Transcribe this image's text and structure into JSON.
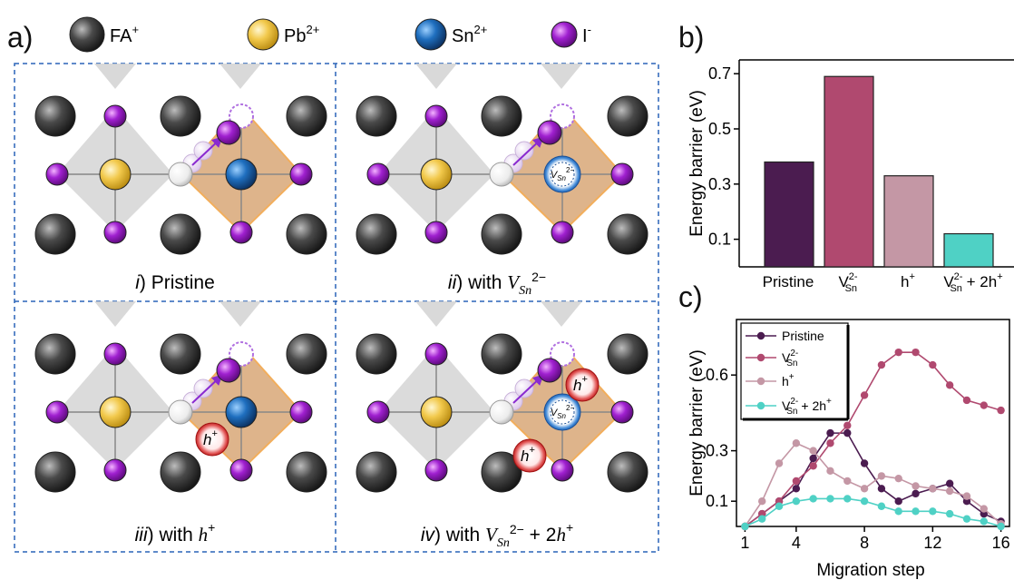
{
  "panel_a": {
    "label": "a)",
    "legend": [
      {
        "name": "FA",
        "sup": "+",
        "color": "#3a3a3a",
        "icon": "fa-sphere-icon"
      },
      {
        "name": "Pb",
        "sup": "2+",
        "color": "#f2c94c",
        "icon": "pb-sphere-icon"
      },
      {
        "name": "Sn",
        "sup": "2+",
        "color": "#1f6fbf",
        "icon": "sn-sphere-icon"
      },
      {
        "name": "I",
        "sup": "-",
        "color": "#a020d0",
        "icon": "i-sphere-icon"
      }
    ],
    "subpanels": [
      {
        "numeral": "i",
        "suffix": ") Pristine"
      },
      {
        "numeral": "ii",
        "suffix": ") with "
      },
      {
        "numeral": "iii",
        "suffix": ") with "
      },
      {
        "numeral": "iv",
        "suffix": ") with "
      }
    ],
    "vacancy_label": "V",
    "vacancy_sub": "Sn",
    "vacancy_sup": "2−",
    "hole_label": "h",
    "hole_sup": "+"
  },
  "panel_b": {
    "label": "b)",
    "chart_data": {
      "type": "bar",
      "ylabel": "Energy barrier (eV)",
      "ylim": [
        0.0,
        0.75
      ],
      "yticks": [
        0.1,
        0.3,
        0.5,
        0.7
      ],
      "categories": [
        "Pristine",
        "V_Sn^2-",
        "h+",
        "V_Sn^2- + 2h+"
      ],
      "values": [
        0.38,
        0.69,
        0.33,
        0.12
      ],
      "colors": [
        "#4b1c50",
        "#b0496f",
        "#c497a5",
        "#4fd1c5"
      ]
    }
  },
  "panel_c": {
    "label": "c)",
    "chart_data": {
      "type": "line",
      "xlabel": "Migration step",
      "ylabel": "Energy barrier (eV)",
      "xlim": [
        0.5,
        16.5
      ],
      "ylim": [
        0.0,
        0.82
      ],
      "xticks": [
        1,
        4,
        8,
        12,
        16
      ],
      "yticks": [
        0.1,
        0.3,
        0.6
      ],
      "x": [
        1,
        2,
        3,
        4,
        5,
        6,
        7,
        8,
        9,
        10,
        11,
        12,
        13,
        14,
        15,
        16
      ],
      "series": [
        {
          "name": "Pristine",
          "color": "#4b1c50",
          "values": [
            0.0,
            0.05,
            0.1,
            0.15,
            0.27,
            0.37,
            0.37,
            0.25,
            0.15,
            0.1,
            0.13,
            0.15,
            0.17,
            0.1,
            0.05,
            0.02
          ]
        },
        {
          "name": "V_Sn^2-",
          "color": "#b0496f",
          "values": [
            0.0,
            0.05,
            0.1,
            0.18,
            0.24,
            0.33,
            0.4,
            0.52,
            0.64,
            0.69,
            0.69,
            0.64,
            0.56,
            0.5,
            0.48,
            0.46
          ]
        },
        {
          "name": "h+",
          "color": "#c497a5",
          "values": [
            0.0,
            0.1,
            0.25,
            0.33,
            0.3,
            0.22,
            0.18,
            0.15,
            0.2,
            0.19,
            0.16,
            0.15,
            0.14,
            0.12,
            0.07,
            0.01
          ]
        },
        {
          "name": "V_Sn^2- + 2h+",
          "color": "#4fd1c5",
          "values": [
            0.0,
            0.03,
            0.08,
            0.1,
            0.11,
            0.11,
            0.11,
            0.1,
            0.08,
            0.06,
            0.06,
            0.06,
            0.05,
            0.03,
            0.02,
            0.0
          ]
        }
      ]
    }
  }
}
